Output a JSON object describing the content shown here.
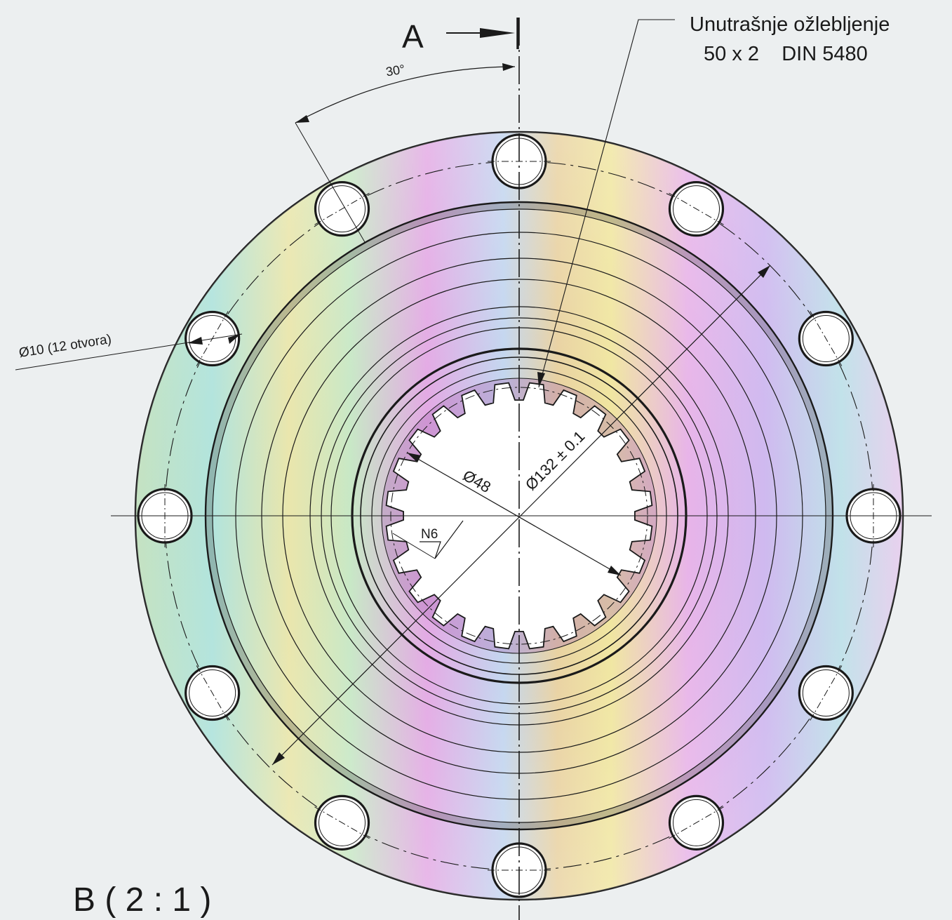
{
  "section_marker": {
    "letter": "A",
    "arrow": "section-arrow"
  },
  "callout": {
    "line1": "Unutrašnje ožlebljenje",
    "line2": "50 x 2    DIN 5480"
  },
  "dimensions": {
    "angle": "30°",
    "hole": "Ø10 (12 otvora)",
    "bore": "Ø48",
    "pitch_circle": "Ø132 ± 0.1"
  },
  "surface_finish": "N6",
  "view_label": "B ( 2 : 1 )",
  "features": {
    "bolt_holes": 12,
    "spline_teeth": 24
  },
  "colors": {
    "line": "#1a1a1a",
    "rainbow": [
      "#e9a8e6",
      "#a9e6d2",
      "#ece8a4",
      "#d6b3ee",
      "#b5d8e6",
      "#e6c2e8"
    ]
  }
}
